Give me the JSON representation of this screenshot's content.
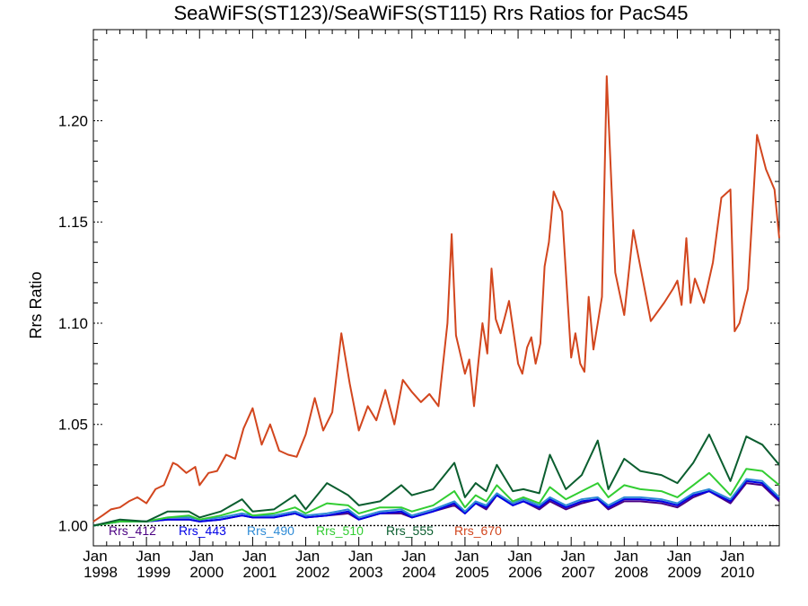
{
  "chart_data": {
    "type": "line",
    "title": "SeaWiFS(ST123)/SeaWiFS(ST115)  Rrs Ratios for PacS45",
    "xlabel": "",
    "ylabel": "Rrs Ratio",
    "xlim": [
      1998.0,
      2010.92
    ],
    "ylim": [
      0.99,
      1.245
    ],
    "y_ticks": [
      1.0,
      1.05,
      1.1,
      1.15,
      1.2
    ],
    "y_tick_labels": [
      "1.00",
      "1.05",
      "1.10",
      "1.15",
      "1.20"
    ],
    "x_ticks": [
      1998,
      1999,
      2000,
      2001,
      2002,
      2003,
      2004,
      2005,
      2006,
      2007,
      2008,
      2009,
      2010
    ],
    "x_tick_labels": [
      {
        "month": "Jan",
        "year": "1998"
      },
      {
        "month": "Jan",
        "year": "1999"
      },
      {
        "month": "Jan",
        "year": "2000"
      },
      {
        "month": "Jan",
        "year": "2001"
      },
      {
        "month": "Jan",
        "year": "2002"
      },
      {
        "month": "Jan",
        "year": "2003"
      },
      {
        "month": "Jan",
        "year": "2004"
      },
      {
        "month": "Jan",
        "year": "2005"
      },
      {
        "month": "Jan",
        "year": "2006"
      },
      {
        "month": "Jan",
        "year": "2007"
      },
      {
        "month": "Jan",
        "year": "2008"
      },
      {
        "month": "Jan",
        "year": "2009"
      },
      {
        "month": "Jan",
        "year": "2010"
      }
    ],
    "reference_line": 1.0,
    "legend_position": "bottom-left",
    "series": [
      {
        "name": "Rrs_412",
        "color": "#4b0082",
        "x": [
          1998.0,
          1998.5,
          1999.0,
          1999.4,
          1999.8,
          2000.0,
          2000.4,
          2000.8,
          2001.0,
          2001.4,
          2001.8,
          2002.0,
          2002.4,
          2002.8,
          2003.0,
          2003.4,
          2003.8,
          2004.0,
          2004.4,
          2004.8,
          2005.0,
          2005.2,
          2005.4,
          2005.6,
          2005.9,
          2006.1,
          2006.4,
          2006.6,
          2006.9,
          2007.2,
          2007.5,
          2007.7,
          2008.0,
          2008.3,
          2008.7,
          2009.0,
          2009.3,
          2009.6,
          2010.0,
          2010.3,
          2010.6,
          2010.92
        ],
        "y": [
          1.0,
          1.002,
          1.002,
          1.003,
          1.003,
          1.002,
          1.003,
          1.005,
          1.004,
          1.004,
          1.006,
          1.004,
          1.005,
          1.006,
          1.003,
          1.006,
          1.006,
          1.004,
          1.007,
          1.01,
          1.006,
          1.011,
          1.008,
          1.015,
          1.01,
          1.012,
          1.008,
          1.012,
          1.008,
          1.011,
          1.013,
          1.008,
          1.012,
          1.012,
          1.011,
          1.009,
          1.014,
          1.017,
          1.011,
          1.021,
          1.02,
          1.012
        ]
      },
      {
        "name": "Rrs_443",
        "color": "#0000e6",
        "x": [
          1998.0,
          1998.5,
          1999.0,
          1999.4,
          1999.8,
          2000.0,
          2000.4,
          2000.8,
          2001.0,
          2001.4,
          2001.8,
          2002.0,
          2002.4,
          2002.8,
          2003.0,
          2003.4,
          2003.8,
          2004.0,
          2004.4,
          2004.8,
          2005.0,
          2005.2,
          2005.4,
          2005.6,
          2005.9,
          2006.1,
          2006.4,
          2006.6,
          2006.9,
          2007.2,
          2007.5,
          2007.7,
          2008.0,
          2008.3,
          2008.7,
          2009.0,
          2009.3,
          2009.6,
          2010.0,
          2010.3,
          2010.6,
          2010.92
        ],
        "y": [
          1.0,
          1.002,
          1.002,
          1.003,
          1.003,
          1.002,
          1.003,
          1.005,
          1.004,
          1.004,
          1.006,
          1.004,
          1.005,
          1.007,
          1.003,
          1.006,
          1.007,
          1.004,
          1.007,
          1.011,
          1.006,
          1.011,
          1.009,
          1.015,
          1.01,
          1.012,
          1.009,
          1.013,
          1.009,
          1.012,
          1.013,
          1.009,
          1.013,
          1.013,
          1.012,
          1.01,
          1.015,
          1.017,
          1.012,
          1.022,
          1.021,
          1.013
        ]
      },
      {
        "name": "Rrs_490",
        "color": "#2e8bd6",
        "x": [
          1998.0,
          1998.5,
          1999.0,
          1999.4,
          1999.8,
          2000.0,
          2000.4,
          2000.8,
          2001.0,
          2001.4,
          2001.8,
          2002.0,
          2002.4,
          2002.8,
          2003.0,
          2003.4,
          2003.8,
          2004.0,
          2004.4,
          2004.8,
          2005.0,
          2005.2,
          2005.4,
          2005.6,
          2005.9,
          2006.1,
          2006.4,
          2006.6,
          2006.9,
          2007.2,
          2007.5,
          2007.7,
          2008.0,
          2008.3,
          2008.7,
          2009.0,
          2009.3,
          2009.6,
          2010.0,
          2010.3,
          2010.6,
          2010.92
        ],
        "y": [
          1.0,
          1.002,
          1.002,
          1.004,
          1.004,
          1.003,
          1.004,
          1.006,
          1.005,
          1.005,
          1.007,
          1.005,
          1.006,
          1.008,
          1.004,
          1.007,
          1.008,
          1.005,
          1.008,
          1.012,
          1.007,
          1.012,
          1.01,
          1.016,
          1.011,
          1.013,
          1.01,
          1.014,
          1.01,
          1.013,
          1.014,
          1.01,
          1.014,
          1.014,
          1.013,
          1.011,
          1.016,
          1.018,
          1.013,
          1.023,
          1.022,
          1.014
        ]
      },
      {
        "name": "Rrs_510",
        "color": "#32cd32",
        "x": [
          1998.0,
          1998.5,
          1999.0,
          1999.4,
          1999.8,
          2000.0,
          2000.4,
          2000.8,
          2001.0,
          2001.4,
          2001.8,
          2002.0,
          2002.4,
          2002.8,
          2003.0,
          2003.4,
          2003.8,
          2004.0,
          2004.4,
          2004.8,
          2005.0,
          2005.2,
          2005.4,
          2005.6,
          2005.9,
          2006.1,
          2006.4,
          2006.6,
          2006.9,
          2007.2,
          2007.5,
          2007.7,
          2008.0,
          2008.3,
          2008.7,
          2009.0,
          2009.3,
          2009.6,
          2010.0,
          2010.3,
          2010.6,
          2010.92
        ],
        "y": [
          1.0,
          1.002,
          1.002,
          1.004,
          1.005,
          1.003,
          1.005,
          1.008,
          1.005,
          1.006,
          1.009,
          1.006,
          1.011,
          1.01,
          1.006,
          1.009,
          1.009,
          1.007,
          1.01,
          1.017,
          1.009,
          1.015,
          1.012,
          1.02,
          1.012,
          1.014,
          1.011,
          1.019,
          1.013,
          1.017,
          1.021,
          1.014,
          1.02,
          1.018,
          1.017,
          1.014,
          1.02,
          1.026,
          1.015,
          1.028,
          1.027,
          1.02
        ]
      },
      {
        "name": "Rrs_555",
        "color": "#0b5e2f",
        "x": [
          1998.0,
          1998.5,
          1999.0,
          1999.4,
          1999.8,
          2000.0,
          2000.4,
          2000.8,
          2001.0,
          2001.4,
          2001.8,
          2002.0,
          2002.4,
          2002.8,
          2003.0,
          2003.4,
          2003.8,
          2004.0,
          2004.4,
          2004.8,
          2005.0,
          2005.2,
          2005.4,
          2005.6,
          2005.9,
          2006.1,
          2006.4,
          2006.6,
          2006.9,
          2007.2,
          2007.5,
          2007.7,
          2008.0,
          2008.3,
          2008.7,
          2009.0,
          2009.3,
          2009.6,
          2010.0,
          2010.3,
          2010.6,
          2010.92
        ],
        "y": [
          1.0,
          1.003,
          1.002,
          1.007,
          1.007,
          1.004,
          1.007,
          1.013,
          1.007,
          1.008,
          1.015,
          1.008,
          1.021,
          1.015,
          1.01,
          1.012,
          1.02,
          1.015,
          1.018,
          1.031,
          1.014,
          1.021,
          1.017,
          1.03,
          1.017,
          1.018,
          1.016,
          1.035,
          1.018,
          1.025,
          1.042,
          1.018,
          1.033,
          1.027,
          1.025,
          1.021,
          1.031,
          1.045,
          1.022,
          1.044,
          1.04,
          1.03
        ]
      },
      {
        "name": "Rrs_670",
        "color": "#d2461e",
        "x": [
          1998.0,
          1998.17,
          1998.33,
          1998.5,
          1998.67,
          1998.83,
          1999.0,
          1999.17,
          1999.33,
          1999.5,
          1999.58,
          1999.75,
          1999.92,
          2000.0,
          2000.17,
          2000.33,
          2000.5,
          2000.67,
          2000.83,
          2001.0,
          2001.17,
          2001.33,
          2001.5,
          2001.67,
          2001.83,
          2002.0,
          2002.17,
          2002.33,
          2002.5,
          2002.67,
          2002.83,
          2003.0,
          2003.17,
          2003.33,
          2003.5,
          2003.67,
          2003.83,
          2004.0,
          2004.17,
          2004.33,
          2004.5,
          2004.67,
          2004.75,
          2004.83,
          2005.0,
          2005.08,
          2005.17,
          2005.25,
          2005.33,
          2005.42,
          2005.5,
          2005.58,
          2005.67,
          2005.83,
          2006.0,
          2006.08,
          2006.17,
          2006.25,
          2006.33,
          2006.42,
          2006.5,
          2006.58,
          2006.67,
          2006.83,
          2007.0,
          2007.08,
          2007.17,
          2007.25,
          2007.33,
          2007.42,
          2007.5,
          2007.58,
          2007.67,
          2007.83,
          2008.0,
          2008.17,
          2008.5,
          2008.75,
          2008.92,
          2009.0,
          2009.08,
          2009.17,
          2009.25,
          2009.33,
          2009.5,
          2009.67,
          2009.83,
          2010.0,
          2010.08,
          2010.17,
          2010.33,
          2010.5,
          2010.67,
          2010.83,
          2010.92
        ],
        "y": [
          1.002,
          1.005,
          1.008,
          1.009,
          1.012,
          1.014,
          1.011,
          1.018,
          1.02,
          1.031,
          1.03,
          1.026,
          1.029,
          1.02,
          1.026,
          1.027,
          1.035,
          1.033,
          1.048,
          1.058,
          1.04,
          1.05,
          1.037,
          1.035,
          1.034,
          1.045,
          1.063,
          1.047,
          1.056,
          1.095,
          1.07,
          1.047,
          1.059,
          1.052,
          1.067,
          1.05,
          1.072,
          1.066,
          1.061,
          1.065,
          1.059,
          1.1,
          1.144,
          1.094,
          1.075,
          1.082,
          1.059,
          1.08,
          1.1,
          1.085,
          1.127,
          1.102,
          1.095,
          1.111,
          1.08,
          1.075,
          1.088,
          1.093,
          1.08,
          1.09,
          1.128,
          1.14,
          1.165,
          1.155,
          1.083,
          1.095,
          1.08,
          1.076,
          1.113,
          1.087,
          1.1,
          1.113,
          1.222,
          1.125,
          1.104,
          1.146,
          1.101,
          1.11,
          1.117,
          1.121,
          1.109,
          1.142,
          1.11,
          1.122,
          1.11,
          1.13,
          1.162,
          1.166,
          1.096,
          1.1,
          1.117,
          1.193,
          1.176,
          1.166,
          1.142
        ]
      }
    ]
  }
}
